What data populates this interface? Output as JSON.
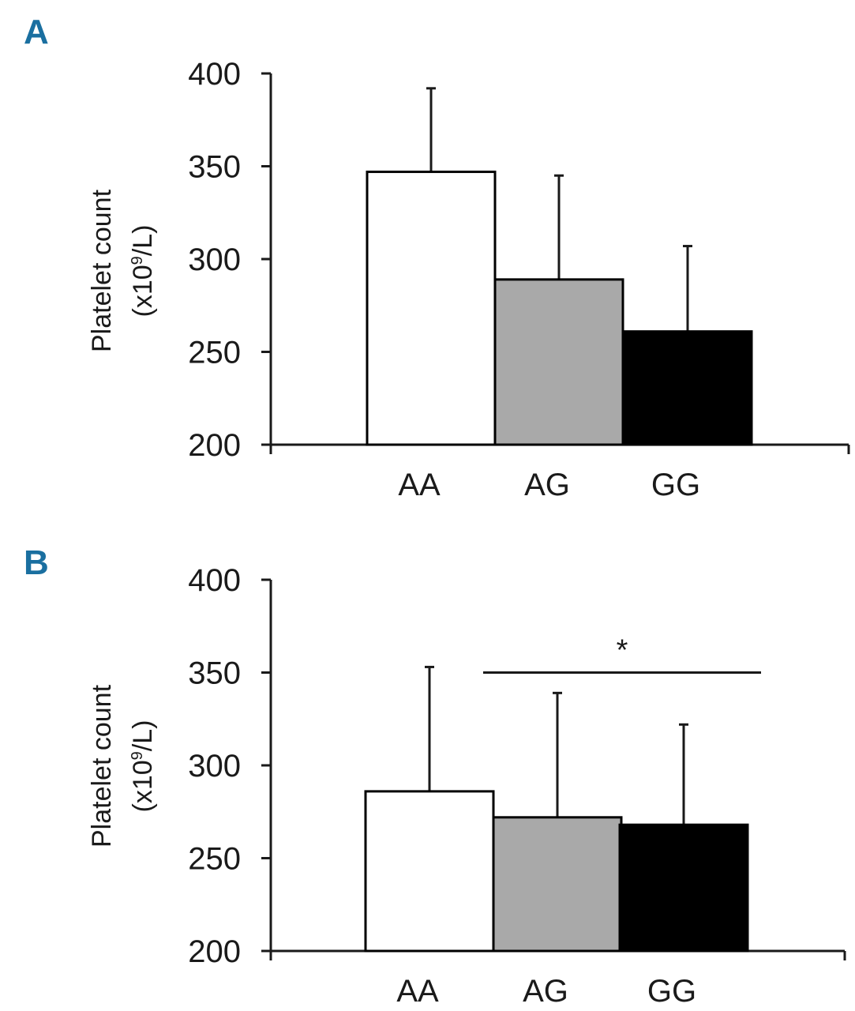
{
  "colors": {
    "panel_letter": "#1a6fa0",
    "axis": "#1a1a1a",
    "bar_stroke": "#000000"
  },
  "chart_data": [
    {
      "panel": "A",
      "type": "bar",
      "categories": [
        "AA",
        "AG",
        "GG"
      ],
      "values": [
        347,
        289,
        261
      ],
      "error_plus": [
        45,
        56,
        46
      ],
      "bar_colors": [
        "#ffffff",
        "#a9a9a9",
        "#000000"
      ],
      "ylabel_line1": "Platelet count",
      "ylabel_line2_prefix": "(x10",
      "ylabel_line2_sup": "9",
      "ylabel_line2_suffix": "/L)",
      "ylim": [
        200,
        400
      ],
      "yticks": [
        200,
        250,
        300,
        350,
        400
      ],
      "significance": null
    },
    {
      "panel": "B",
      "type": "bar",
      "categories": [
        "AA",
        "AG",
        "GG"
      ],
      "values": [
        286,
        272,
        268
      ],
      "error_plus": [
        67,
        67,
        54
      ],
      "bar_colors": [
        "#ffffff",
        "#a9a9a9",
        "#000000"
      ],
      "ylabel_line1": "Platelet count",
      "ylabel_line2_prefix": "(x10",
      "ylabel_line2_sup": "9",
      "ylabel_line2_suffix": "/L)",
      "ylim": [
        200,
        400
      ],
      "yticks": [
        200,
        250,
        300,
        350,
        400
      ],
      "significance": {
        "label": "*",
        "bracket_value": 350
      }
    }
  ]
}
